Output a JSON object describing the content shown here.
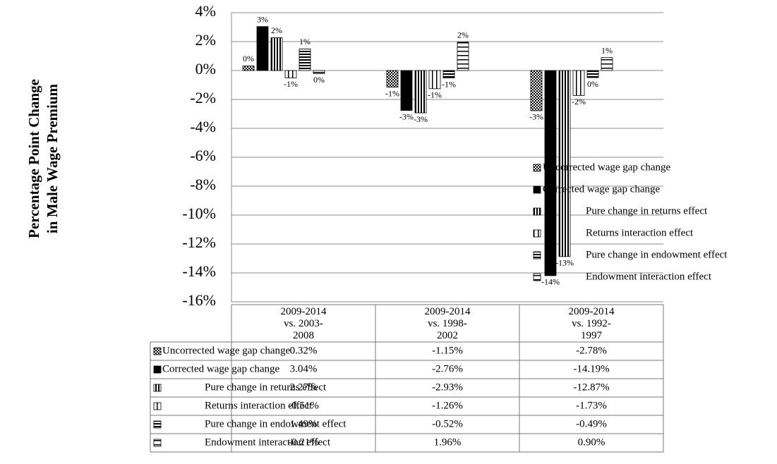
{
  "chart_data": {
    "type": "bar",
    "y_label": [
      "Percentage Point Change",
      "in Male Wage Premium"
    ],
    "categories": [
      "2009-2014 vs. 2003-2008",
      "2009-2014 vs. 1998-2002",
      "2009-2014 vs. 1992-1997"
    ],
    "series": [
      {
        "name": "Uncorrected wage gap change",
        "pattern": "checker",
        "values": [
          0.32,
          -1.15,
          -2.78
        ],
        "value_labels": [
          "0%",
          "-1%",
          "-3%"
        ],
        "table_labels": [
          "0.32%",
          "-1.15%",
          "-2.78%"
        ]
      },
      {
        "name": "Corrected wage gap change",
        "pattern": "solid",
        "values": [
          3.04,
          -2.76,
          -14.19
        ],
        "value_labels": [
          "3%",
          "-3%",
          "-14%"
        ],
        "table_labels": [
          "3.04%",
          "-2.76%",
          "-14.19%"
        ]
      },
      {
        "name": "Pure change in returns effect",
        "pattern": "vdense",
        "values": [
          2.27,
          -2.93,
          -12.87
        ],
        "value_labels": [
          "2%",
          "-3%",
          "-13%"
        ],
        "table_labels": [
          "2.27%",
          "-2.93%",
          "-12.87%"
        ]
      },
      {
        "name": "Returns interaction effect",
        "pattern": "vwide",
        "values": [
          -0.51,
          -1.26,
          -1.73
        ],
        "value_labels": [
          "-1%",
          "-1%",
          "-2%"
        ],
        "table_labels": [
          "-0.51%",
          "-1.26%",
          "-1.73%"
        ]
      },
      {
        "name": "Pure change in endowment effect",
        "pattern": "hdense",
        "values": [
          1.49,
          -0.52,
          -0.49
        ],
        "value_labels": [
          "1%",
          "-1%",
          "0%"
        ],
        "table_labels": [
          "1.49%",
          "-0.52%",
          "-0.49%"
        ]
      },
      {
        "name": "Endowment interaction effect",
        "pattern": "hwide",
        "values": [
          -0.21,
          1.96,
          0.9
        ],
        "value_labels": [
          "0%",
          "2%",
          "1%"
        ],
        "table_labels": [
          "-0.21%",
          "1.96%",
          "0.90%"
        ]
      }
    ],
    "ylim": [
      -16,
      4
    ],
    "yticks": [
      {
        "value": 4,
        "label": "4%"
      },
      {
        "value": 2,
        "label": "2%"
      },
      {
        "value": 0,
        "label": "0%"
      },
      {
        "value": -2,
        "label": "-2%"
      },
      {
        "value": -4,
        "label": "-4%"
      },
      {
        "value": -6,
        "label": "-6%"
      },
      {
        "value": -8,
        "label": "-8%"
      },
      {
        "value": -10,
        "label": "-10%"
      },
      {
        "value": -12,
        "label": "-12%"
      },
      {
        "value": -14,
        "label": "-14%"
      },
      {
        "value": -16,
        "label": "-16%"
      }
    ],
    "grid": true
  }
}
